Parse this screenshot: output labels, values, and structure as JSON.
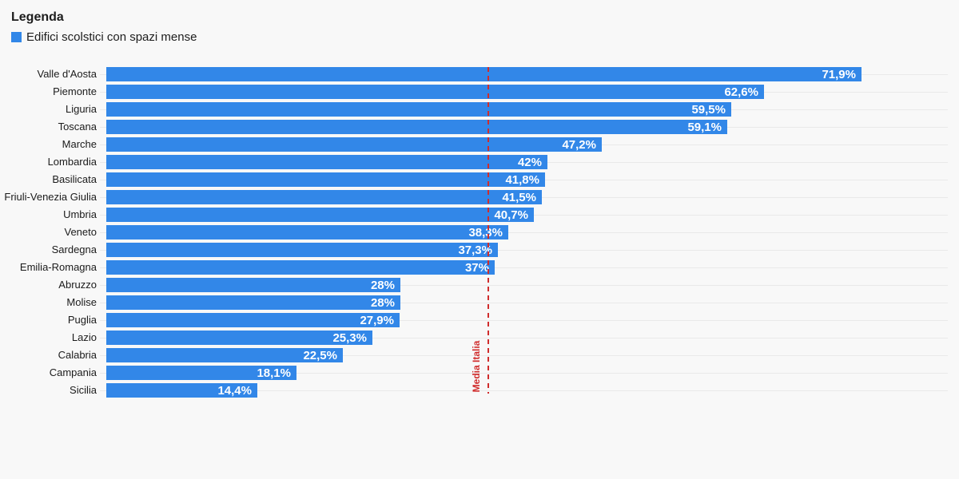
{
  "legend": {
    "title": "Legenda",
    "items": [
      {
        "label": "Edifici scolstici con spazi mense",
        "color": "#3287e8"
      }
    ]
  },
  "chart_data": {
    "type": "bar",
    "orientation": "horizontal",
    "title": "",
    "xlabel": "",
    "ylabel": "",
    "xlim": [
      0,
      80
    ],
    "grid": true,
    "legend_position": "top-left",
    "bar_color": "#3287e8",
    "gridline_color": "#e9e9e9",
    "value_label_color": "#ffffff",
    "categories": [
      "Valle d'Aosta",
      "Piemonte",
      "Liguria",
      "Toscana",
      "Marche",
      "Lombardia",
      "Basilicata",
      "Friuli-Venezia Giulia",
      "Umbria",
      "Veneto",
      "Sardegna",
      "Emilia-Romagna",
      "Abruzzo",
      "Molise",
      "Puglia",
      "Lazio",
      "Calabria",
      "Campania",
      "Sicilia"
    ],
    "values": [
      71.9,
      62.6,
      59.5,
      59.1,
      47.2,
      42,
      41.8,
      41.5,
      40.7,
      38.3,
      37.3,
      37,
      28,
      28,
      27.9,
      25.3,
      22.5,
      18.1,
      14.4
    ],
    "value_labels": [
      "71,9%",
      "62,6%",
      "59,5%",
      "59,1%",
      "47,2%",
      "42%",
      "41,8%",
      "41,5%",
      "40,7%",
      "38,3%",
      "37,3%",
      "37%",
      "28%",
      "28%",
      "27,9%",
      "25,3%",
      "22,5%",
      "18,1%",
      "14,4%"
    ],
    "series_name": "Edifici scolstici con spazi mense",
    "reference_line": {
      "label": "Media Italia",
      "value": 36.4,
      "color": "#d02c2c"
    }
  }
}
